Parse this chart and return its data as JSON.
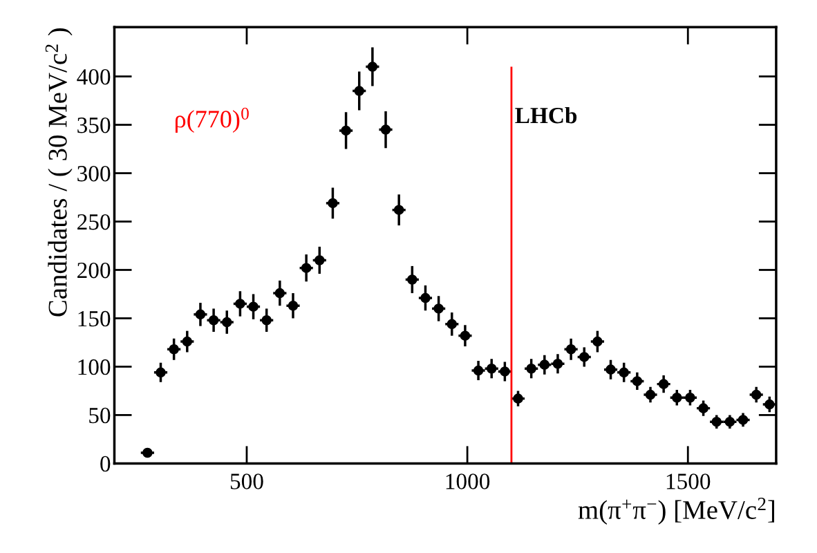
{
  "chart_data": {
    "type": "scatter",
    "xlabel": "m(π$^{+}$π$^{−}$) [MeV/c$^{2}$]",
    "ylabel": "Candidates / ( 30 MeV/c$^{2}$ )",
    "x": [
      275,
      305,
      335,
      365,
      395,
      425,
      455,
      485,
      515,
      545,
      575,
      605,
      635,
      665,
      695,
      725,
      755,
      785,
      815,
      845,
      875,
      905,
      935,
      965,
      995,
      1025,
      1055,
      1085,
      1115,
      1145,
      1175,
      1205,
      1235,
      1265,
      1295,
      1325,
      1355,
      1385,
      1415,
      1445,
      1475,
      1505,
      1535,
      1565,
      1595,
      1625,
      1655,
      1685
    ],
    "values": [
      11,
      94,
      118,
      126,
      154,
      148,
      146,
      165,
      162,
      148,
      176,
      163,
      202,
      210,
      269,
      344,
      385,
      410,
      345,
      262,
      190,
      171,
      160,
      144,
      132,
      96,
      98,
      95,
      67,
      98,
      102,
      103,
      118,
      110,
      126,
      97,
      94,
      85,
      71,
      82,
      68,
      68,
      57,
      43,
      43,
      45,
      71,
      61
    ],
    "errors": [
      3,
      10,
      11,
      11,
      12,
      12,
      12,
      13,
      13,
      12,
      13,
      13,
      14,
      14,
      16,
      19,
      20,
      20,
      19,
      16,
      14,
      13,
      13,
      12,
      11,
      10,
      10,
      10,
      8,
      10,
      10,
      10,
      11,
      10,
      11,
      10,
      10,
      9,
      8,
      9,
      8,
      8,
      8,
      7,
      7,
      7,
      8,
      8
    ],
    "xerrors": [
      15,
      15,
      15,
      15,
      15,
      15,
      15,
      15,
      15,
      15,
      15,
      15,
      15,
      15,
      15,
      15,
      15,
      15,
      15,
      15,
      15,
      15,
      15,
      15,
      15,
      15,
      15,
      15,
      15,
      15,
      15,
      15,
      15,
      15,
      15,
      15,
      15,
      15,
      15,
      15,
      15,
      15,
      15,
      15,
      15,
      15,
      15,
      15
    ],
    "color": "#000000",
    "marker": "circle",
    "xlim": [
      200,
      1700
    ],
    "xticks": [
      500,
      1000,
      1500
    ],
    "ylim": [
      0,
      451
    ],
    "yticks": [
      0,
      50,
      100,
      150,
      200,
      250,
      300,
      350,
      400
    ],
    "ref_lines": [
      {
        "axis": "x",
        "value": 1100,
        "label": null,
        "color": "#ff0000"
      }
    ],
    "annotations": [
      "ρ(770)$^{0}$",
      "LHCb"
    ],
    "grid": false,
    "legend": false
  }
}
